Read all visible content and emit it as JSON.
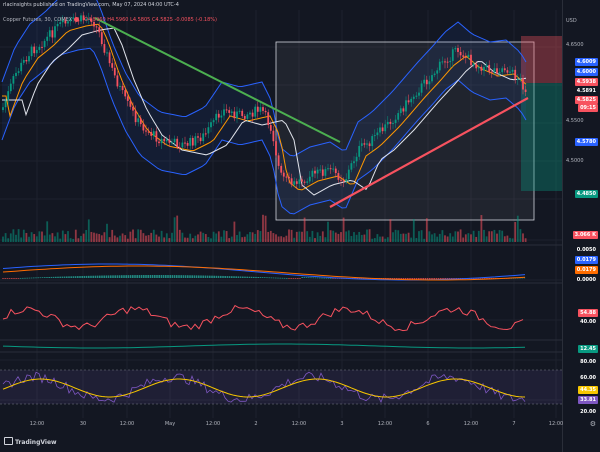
{
  "header": {
    "publish_line": "rlacinsights published on TradingView.com, May 07, 2024 04:00 UTC-4"
  },
  "symbol_bar": {
    "name": "Copper Futures, 30, COMEX",
    "ohlc": "O4.5960 H4.5960 L4.5805 C4.5825 -0.0085 (-0.18%)",
    "status_color": "#f7525f"
  },
  "price_axis": {
    "currency": "USD",
    "labels": [
      "4.6500",
      "4.6000",
      "4.5500",
      "4.5000",
      "4.4500"
    ],
    "tags": [
      {
        "text": "4.6009",
        "color": "#2962ff"
      },
      {
        "text": "4.6000",
        "color": "#2962ff"
      },
      {
        "text": "4.5938",
        "color": "#f7525f"
      },
      {
        "text": "4.5891",
        "color": "#131722"
      },
      {
        "text": "4.5825",
        "color": "#f7525f"
      },
      {
        "text": "09:15",
        "color": "#f7525f"
      },
      {
        "text": "4.5780",
        "color": "#2962ff"
      },
      {
        "text": "4.4850",
        "color": "#089981"
      },
      {
        "text": "3.066 K",
        "color": "#f7525f"
      }
    ]
  },
  "indicators": {
    "macd": {
      "labels": [
        "0.0050",
        "0.0179",
        "0.0179",
        "0.0000"
      ],
      "tag_colors": [
        "#131722",
        "#2962ff",
        "#ff6d00",
        "#131722"
      ]
    },
    "rsi_panel": {
      "labels": [
        "54.88",
        "40.00"
      ],
      "tag_colors": [
        "#f7525f",
        "#131722"
      ]
    },
    "adx_panel": {
      "labels": [
        "12.45"
      ],
      "tag_colors": [
        "#089981"
      ]
    },
    "stoch_panel": {
      "labels": [
        "80.00",
        "60.00",
        "44.35",
        "33.81",
        "20.00"
      ],
      "tag_colors": [
        "#131722",
        "#131722",
        "#f7c600",
        "#7e57c2",
        "#131722"
      ]
    }
  },
  "time_axis": [
    "12:00",
    "30",
    "12:00",
    "May",
    "12:00",
    "2",
    "12:00",
    "3",
    "12:00",
    "6",
    "12:00",
    "7",
    "12:00"
  ],
  "branding": {
    "text": "TradingView"
  },
  "icons": {
    "settings": "gear-icon",
    "logo": "tradingview-logo-icon"
  },
  "colors": {
    "background": "#131722",
    "up": "#089981",
    "down": "#f7525f",
    "trend_down": "#4caf50",
    "trend_up": "#f7525f"
  }
}
